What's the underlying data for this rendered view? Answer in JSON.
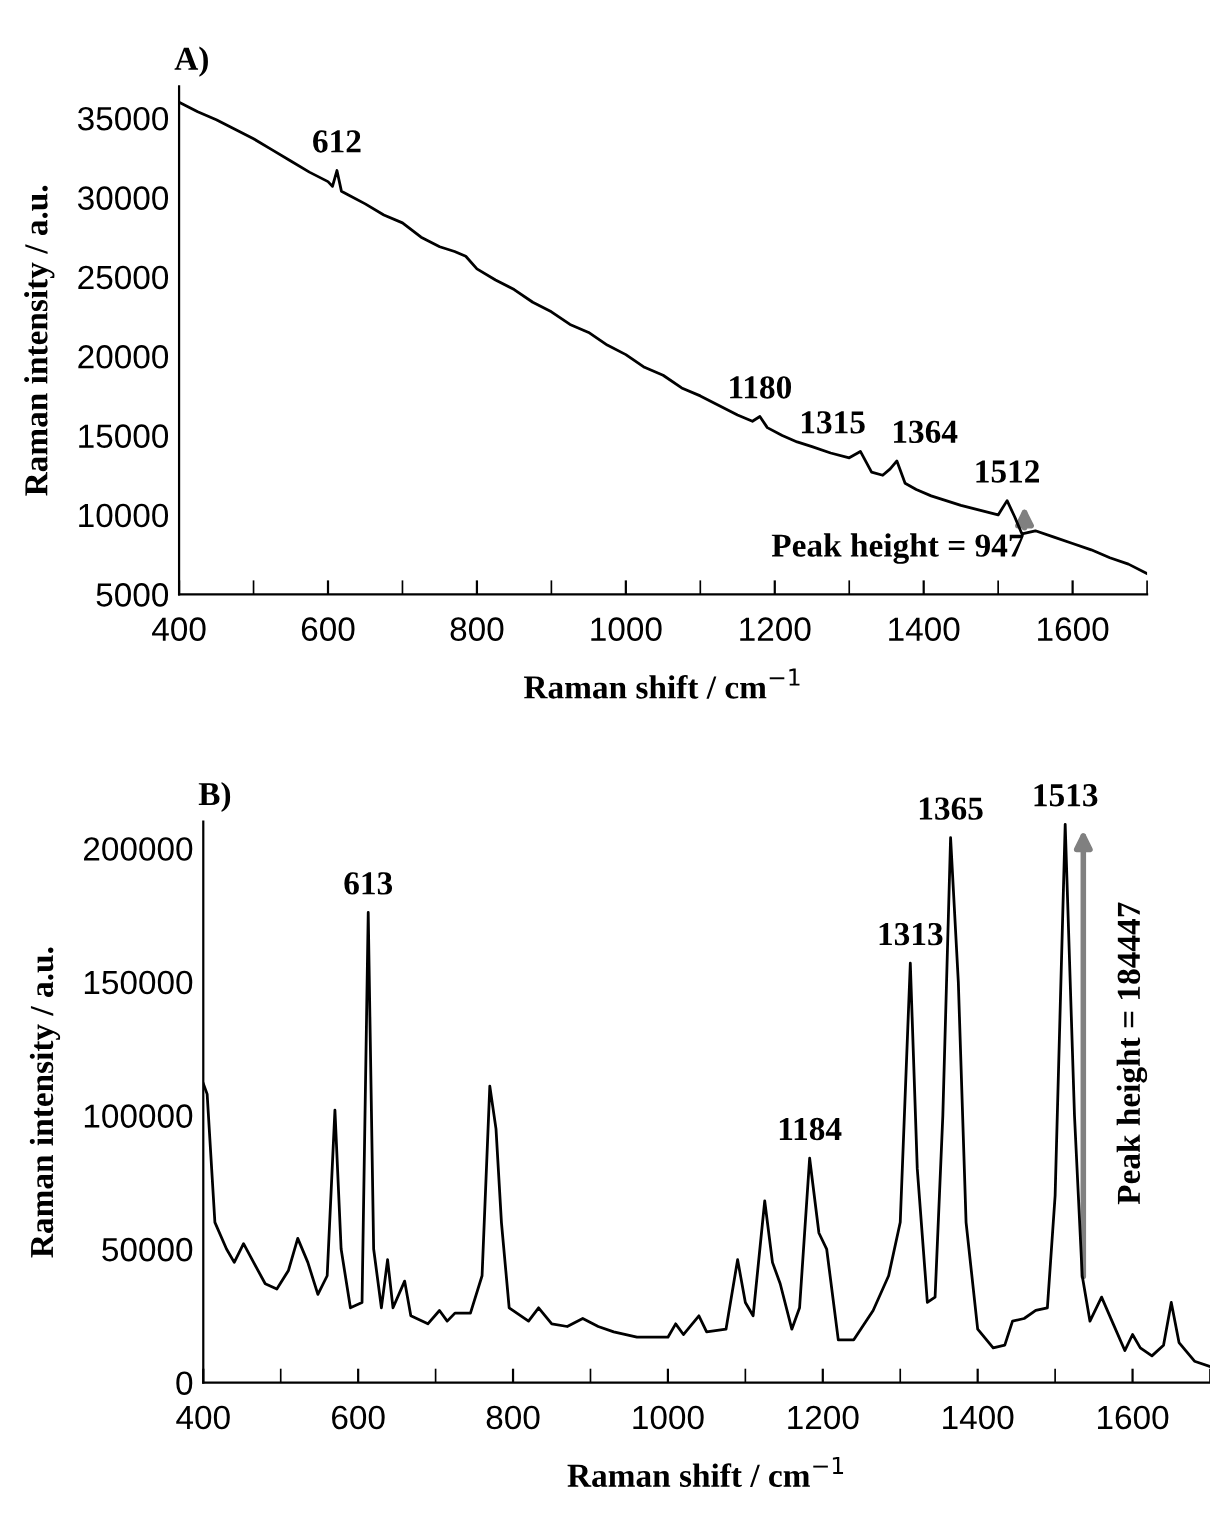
{
  "chart_data": [
    {
      "type": "line",
      "title": "A)",
      "xlabel": "Raman shift / cm$^{−1}$",
      "ylabel": "Raman intensity / a.u.",
      "xlim": [
        400,
        1700
      ],
      "xticks": [
        400,
        600,
        800,
        1000,
        1200,
        1400,
        1600
      ],
      "ylim": [
        5000,
        37000
      ],
      "yticks": [
        5000,
        10000,
        15000,
        20000,
        25000,
        30000,
        35000
      ],
      "grid": false,
      "legend": false,
      "marker": "none",
      "line_style": "solid",
      "series": [
        {
          "color": "#000000",
          "x": [
            400,
            425,
            450,
            475,
            500,
            525,
            550,
            575,
            600,
            606,
            612,
            618,
            630,
            650,
            675,
            700,
            725,
            750,
            770,
            785,
            800,
            825,
            850,
            875,
            900,
            925,
            950,
            975,
            1000,
            1025,
            1050,
            1075,
            1100,
            1125,
            1150,
            1170,
            1180,
            1190,
            1210,
            1230,
            1250,
            1275,
            1300,
            1315,
            1330,
            1345,
            1355,
            1364,
            1375,
            1390,
            1410,
            1430,
            1450,
            1475,
            1500,
            1512,
            1522,
            1532,
            1550,
            1575,
            1600,
            1625,
            1650,
            1675,
            1700
          ],
          "values": [
            36000,
            35400,
            34900,
            34300,
            33700,
            33000,
            32300,
            31600,
            31000,
            30700,
            31700,
            30400,
            30100,
            29600,
            28900,
            28400,
            27500,
            26900,
            26600,
            26300,
            25500,
            24800,
            24200,
            23400,
            22800,
            22000,
            21500,
            20700,
            20100,
            19300,
            18800,
            18000,
            17500,
            16900,
            16300,
            15900,
            16200,
            15500,
            15000,
            14600,
            14300,
            13900,
            13600,
            14000,
            12700,
            12500,
            12900,
            13400,
            12000,
            11600,
            11200,
            10900,
            10600,
            10300,
            10000,
            10900,
            9900,
            8800,
            9000,
            8600,
            8200,
            7800,
            7300,
            6900,
            6300
          ]
        }
      ],
      "annotations": [
        {
          "text": "612",
          "x": 612,
          "y": 31700
        },
        {
          "text": "1180",
          "x": 1180,
          "y": 16200
        },
        {
          "text": "1315",
          "x": 1315,
          "y": 14000
        },
        {
          "text": "1364",
          "x": 1364,
          "y": 13400
        },
        {
          "text": "1512",
          "x": 1512,
          "y": 10900
        },
        "Peak height = 947"
      ]
    },
    {
      "type": "line",
      "title": "B)",
      "xlabel": "Raman shift / cm$^{−1}$",
      "ylabel": "Raman intensity / a.u.",
      "xlim": [
        400,
        1700
      ],
      "xticks": [
        400,
        600,
        800,
        1000,
        1200,
        1400,
        1600
      ],
      "ylim": [
        0,
        210000
      ],
      "yticks": [
        0,
        50000,
        100000,
        150000,
        200000
      ],
      "grid": false,
      "legend": false,
      "marker": "none",
      "line_style": "solid",
      "series": [
        {
          "color": "#000000",
          "x": [
            400,
            405,
            415,
            430,
            440,
            452,
            465,
            480,
            495,
            510,
            522,
            535,
            548,
            560,
            570,
            578,
            590,
            605,
            613,
            620,
            630,
            638,
            645,
            660,
            668,
            690,
            705,
            715,
            725,
            745,
            760,
            770,
            778,
            785,
            795,
            820,
            833,
            850,
            870,
            890,
            910,
            930,
            960,
            1000,
            1010,
            1020,
            1040,
            1050,
            1075,
            1090,
            1100,
            1110,
            1125,
            1135,
            1145,
            1160,
            1170,
            1183,
            1195,
            1205,
            1220,
            1240,
            1265,
            1285,
            1300,
            1313,
            1322,
            1335,
            1345,
            1355,
            1365,
            1375,
            1385,
            1400,
            1420,
            1435,
            1445,
            1460,
            1475,
            1490,
            1500,
            1513,
            1525,
            1535,
            1545,
            1560,
            1575,
            1590,
            1600,
            1610,
            1625,
            1640,
            1650,
            1660,
            1680,
            1700
          ],
          "values": [
            112000,
            108000,
            60000,
            50000,
            45000,
            52000,
            45000,
            37000,
            35000,
            42000,
            54000,
            45000,
            33000,
            40000,
            102000,
            50000,
            28000,
            30000,
            176000,
            50000,
            28000,
            46000,
            28000,
            38000,
            25000,
            22000,
            27000,
            23000,
            26000,
            26000,
            40000,
            111000,
            95000,
            60000,
            28000,
            23000,
            28000,
            22000,
            21000,
            24000,
            21000,
            19000,
            17000,
            17000,
            22000,
            18000,
            25000,
            19000,
            20000,
            46000,
            30000,
            25000,
            68000,
            45000,
            37000,
            20000,
            28000,
            84000,
            56000,
            50000,
            16000,
            16000,
            27000,
            40000,
            60000,
            157000,
            80000,
            30000,
            32000,
            100000,
            204000,
            150000,
            60000,
            20000,
            13000,
            14000,
            23000,
            24000,
            27000,
            28000,
            70000,
            209000,
            100000,
            40000,
            23000,
            32000,
            22000,
            12000,
            18000,
            13000,
            10000,
            14000,
            30000,
            15000,
            8000,
            6000
          ]
        }
      ],
      "annotations": [
        {
          "text": "613",
          "x": 613,
          "y": 176000
        },
        {
          "text": "1184",
          "x": 1183,
          "y": 84000
        },
        {
          "text": "1313",
          "x": 1313,
          "y": 157000
        },
        {
          "text": "1365",
          "x": 1365,
          "y": 204000
        },
        {
          "text": "1513",
          "x": 1513,
          "y": 209000
        },
        "Peak height = 184447"
      ]
    }
  ]
}
